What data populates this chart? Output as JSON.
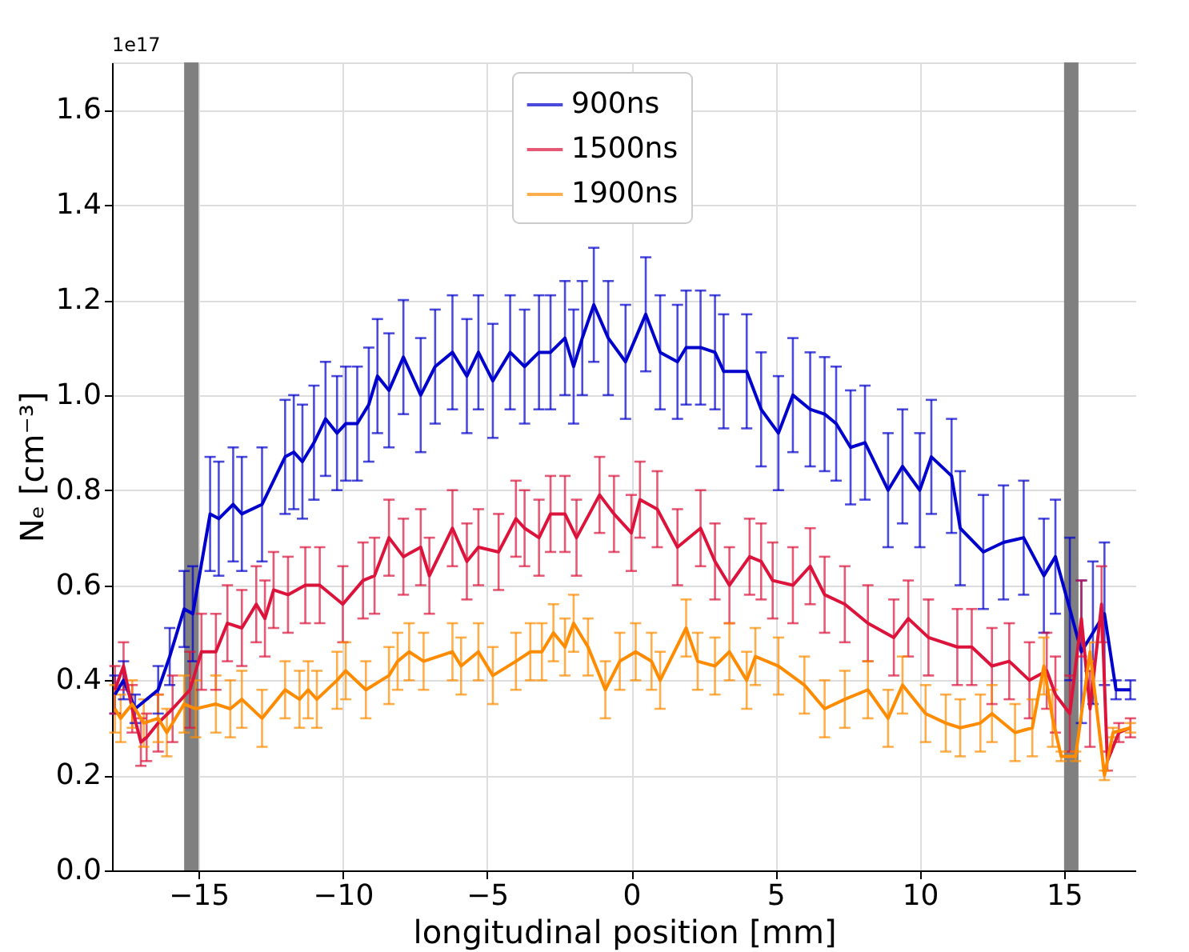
{
  "chart_data": {
    "type": "line",
    "xlabel": "longitudinal position [mm]",
    "ylabel": "Nₑ [cm⁻³]",
    "annotations": [
      "1e17"
    ],
    "xlim": [
      -18,
      17.5
    ],
    "ylim": [
      0,
      1.7
    ],
    "xticks": [
      {
        "value": -15,
        "label": "−15"
      },
      {
        "value": -10,
        "label": "−10"
      },
      {
        "value": -5,
        "label": "−5"
      },
      0,
      5,
      10,
      15
    ],
    "yticks": [
      {
        "value": 0,
        "label": "0.0"
      },
      {
        "value": 0.2,
        "label": "0.2"
      },
      {
        "value": 0.4,
        "label": "0.4"
      },
      {
        "value": 0.6,
        "label": "0.6"
      },
      {
        "value": 0.8,
        "label": "0.8"
      },
      {
        "value": 1,
        "label": "1.0"
      },
      {
        "value": 1.2,
        "label": "1.2"
      },
      {
        "value": 1.4,
        "label": "1.4"
      },
      {
        "value": 1.6,
        "label": "1.6"
      }
    ],
    "grid": true,
    "legend": "top",
    "marker": "none",
    "line_style": "solid",
    "bands": [
      {
        "axis": "x",
        "from": -15.5,
        "to": -15.0,
        "color": "#808080"
      },
      {
        "axis": "x",
        "from": 15.0,
        "to": 15.5,
        "color": "#808080"
      }
    ],
    "series": [
      {
        "name": "900ns",
        "color": "#0000cd",
        "x": [
          -17.9,
          -17.6,
          -17.2,
          -16.4,
          -16.0,
          -15.5,
          -15.2,
          -14.6,
          -14.3,
          -13.8,
          -13.5,
          -12.8,
          -12.0,
          -11.7,
          -11.4,
          -11.0,
          -10.6,
          -10.2,
          -9.9,
          -9.5,
          -9.1,
          -8.8,
          -8.4,
          -7.9,
          -7.3,
          -6.8,
          -6.2,
          -5.7,
          -5.3,
          -4.8,
          -4.2,
          -3.7,
          -3.2,
          -2.8,
          -2.3,
          -2.0,
          -1.7,
          -1.3,
          -0.8,
          -0.2,
          0.5,
          1.0,
          1.6,
          1.9,
          2.4,
          2.9,
          3.2,
          4.0,
          4.5,
          5.1,
          5.6,
          6.2,
          6.7,
          7.1,
          7.6,
          8.1,
          8.9,
          9.4,
          10.0,
          10.4,
          11.1,
          11.4,
          12.2,
          12.9,
          13.6,
          14.3,
          14.7,
          15.2,
          15.6,
          16.0,
          16.4,
          16.8,
          17.3
        ],
        "values": [
          0.37,
          0.4,
          0.34,
          0.38,
          0.45,
          0.55,
          0.54,
          0.75,
          0.74,
          0.77,
          0.75,
          0.77,
          0.87,
          0.88,
          0.86,
          0.9,
          0.95,
          0.92,
          0.94,
          0.94,
          0.98,
          1.04,
          1.01,
          1.08,
          1.0,
          1.06,
          1.09,
          1.04,
          1.09,
          1.03,
          1.09,
          1.06,
          1.09,
          1.09,
          1.12,
          1.06,
          1.12,
          1.19,
          1.12,
          1.07,
          1.17,
          1.09,
          1.07,
          1.1,
          1.1,
          1.09,
          1.05,
          1.05,
          0.97,
          0.92,
          1.0,
          0.97,
          0.96,
          0.94,
          0.89,
          0.9,
          0.8,
          0.85,
          0.8,
          0.87,
          0.83,
          0.72,
          0.67,
          0.69,
          0.7,
          0.62,
          0.66,
          0.55,
          0.46,
          0.5,
          0.54,
          0.38,
          0.38
        ],
        "errors": [
          0.04,
          0.04,
          0.03,
          0.05,
          0.06,
          0.08,
          0.1,
          0.12,
          0.12,
          0.12,
          0.12,
          0.12,
          0.12,
          0.12,
          0.12,
          0.12,
          0.12,
          0.12,
          0.12,
          0.12,
          0.12,
          0.12,
          0.12,
          0.12,
          0.12,
          0.12,
          0.12,
          0.12,
          0.12,
          0.12,
          0.12,
          0.12,
          0.12,
          0.12,
          0.12,
          0.12,
          0.12,
          0.12,
          0.12,
          0.12,
          0.12,
          0.12,
          0.12,
          0.12,
          0.12,
          0.12,
          0.12,
          0.12,
          0.12,
          0.12,
          0.12,
          0.12,
          0.12,
          0.12,
          0.12,
          0.12,
          0.12,
          0.12,
          0.12,
          0.12,
          0.12,
          0.12,
          0.12,
          0.12,
          0.12,
          0.12,
          0.12,
          0.15,
          0.15,
          0.15,
          0.15,
          0.02,
          0.02
        ]
      },
      {
        "name": "1500ns",
        "color": "#dc143c",
        "x": [
          -17.9,
          -17.6,
          -17.3,
          -17.0,
          -16.8,
          -16.4,
          -15.9,
          -15.3,
          -14.9,
          -14.4,
          -14.0,
          -13.5,
          -13.0,
          -12.7,
          -12.4,
          -11.9,
          -11.3,
          -10.8,
          -10.0,
          -9.3,
          -8.9,
          -8.4,
          -7.9,
          -7.3,
          -7.0,
          -6.2,
          -5.7,
          -5.3,
          -4.6,
          -4.0,
          -3.7,
          -3.2,
          -2.8,
          -2.3,
          -1.9,
          -1.1,
          -0.6,
          0.0,
          0.3,
          0.9,
          1.6,
          2.4,
          2.9,
          3.4,
          4.1,
          4.5,
          4.9,
          5.6,
          6.2,
          6.7,
          7.4,
          8.2,
          9.1,
          9.6,
          10.3,
          11.3,
          11.8,
          12.5,
          13.1,
          13.8,
          14.4,
          14.7,
          15.2,
          15.6,
          15.9,
          16.3,
          16.5,
          16.9,
          17.3
        ],
        "values": [
          0.38,
          0.43,
          0.34,
          0.27,
          0.28,
          0.31,
          0.34,
          0.38,
          0.46,
          0.46,
          0.52,
          0.51,
          0.56,
          0.53,
          0.59,
          0.58,
          0.6,
          0.6,
          0.56,
          0.61,
          0.62,
          0.7,
          0.66,
          0.68,
          0.62,
          0.72,
          0.65,
          0.68,
          0.67,
          0.74,
          0.72,
          0.7,
          0.75,
          0.75,
          0.7,
          0.79,
          0.75,
          0.71,
          0.78,
          0.76,
          0.68,
          0.72,
          0.65,
          0.6,
          0.66,
          0.65,
          0.61,
          0.6,
          0.64,
          0.58,
          0.56,
          0.52,
          0.49,
          0.53,
          0.49,
          0.47,
          0.47,
          0.43,
          0.44,
          0.4,
          0.42,
          0.37,
          0.33,
          0.53,
          0.34,
          0.56,
          0.23,
          0.29,
          0.3
        ],
        "errors": [
          0.05,
          0.05,
          0.05,
          0.05,
          0.05,
          0.06,
          0.07,
          0.08,
          0.08,
          0.08,
          0.08,
          0.08,
          0.08,
          0.08,
          0.08,
          0.08,
          0.08,
          0.08,
          0.08,
          0.08,
          0.08,
          0.08,
          0.08,
          0.08,
          0.08,
          0.08,
          0.08,
          0.08,
          0.08,
          0.08,
          0.08,
          0.08,
          0.08,
          0.08,
          0.08,
          0.08,
          0.08,
          0.08,
          0.08,
          0.08,
          0.08,
          0.08,
          0.08,
          0.08,
          0.08,
          0.08,
          0.08,
          0.08,
          0.08,
          0.08,
          0.08,
          0.08,
          0.08,
          0.08,
          0.08,
          0.08,
          0.08,
          0.08,
          0.08,
          0.08,
          0.08,
          0.08,
          0.08,
          0.08,
          0.08,
          0.08,
          0.02,
          0.02,
          0.02
        ]
      },
      {
        "name": "1900ns",
        "color": "#ff8c00",
        "x": [
          -17.9,
          -17.7,
          -17.3,
          -16.9,
          -16.4,
          -16.1,
          -15.5,
          -15.1,
          -14.4,
          -13.9,
          -13.5,
          -12.8,
          -12.0,
          -11.5,
          -11.2,
          -10.9,
          -10.2,
          -9.9,
          -9.2,
          -8.4,
          -8.1,
          -7.7,
          -7.2,
          -6.2,
          -5.9,
          -5.3,
          -4.8,
          -4.0,
          -3.5,
          -3.1,
          -2.7,
          -2.3,
          -2.0,
          -1.5,
          -0.9,
          -0.4,
          0.15,
          0.7,
          1.0,
          1.9,
          2.3,
          2.9,
          3.4,
          4.0,
          4.3,
          5.1,
          6.0,
          6.7,
          7.4,
          8.2,
          8.9,
          9.4,
          10.2,
          10.9,
          11.4,
          12.1,
          12.5,
          13.3,
          13.9,
          14.3,
          14.6,
          14.9,
          15.4,
          15.9,
          16.4,
          16.7,
          17.3
        ],
        "values": [
          0.34,
          0.32,
          0.35,
          0.31,
          0.32,
          0.29,
          0.35,
          0.34,
          0.35,
          0.34,
          0.36,
          0.32,
          0.38,
          0.36,
          0.38,
          0.36,
          0.4,
          0.42,
          0.38,
          0.41,
          0.44,
          0.46,
          0.44,
          0.46,
          0.43,
          0.46,
          0.41,
          0.44,
          0.46,
          0.46,
          0.5,
          0.47,
          0.52,
          0.47,
          0.38,
          0.44,
          0.46,
          0.44,
          0.4,
          0.51,
          0.44,
          0.43,
          0.46,
          0.4,
          0.45,
          0.43,
          0.39,
          0.34,
          0.36,
          0.38,
          0.32,
          0.39,
          0.33,
          0.31,
          0.3,
          0.31,
          0.33,
          0.29,
          0.3,
          0.43,
          0.32,
          0.24,
          0.24,
          0.46,
          0.2,
          0.29,
          0.3
        ],
        "errors": [
          0.05,
          0.05,
          0.05,
          0.05,
          0.05,
          0.05,
          0.06,
          0.06,
          0.06,
          0.06,
          0.06,
          0.06,
          0.06,
          0.06,
          0.06,
          0.06,
          0.06,
          0.06,
          0.06,
          0.06,
          0.06,
          0.06,
          0.06,
          0.06,
          0.06,
          0.06,
          0.06,
          0.06,
          0.06,
          0.06,
          0.06,
          0.06,
          0.06,
          0.06,
          0.06,
          0.06,
          0.06,
          0.06,
          0.06,
          0.06,
          0.06,
          0.06,
          0.06,
          0.06,
          0.06,
          0.06,
          0.06,
          0.06,
          0.06,
          0.06,
          0.06,
          0.06,
          0.06,
          0.06,
          0.06,
          0.06,
          0.06,
          0.06,
          0.06,
          0.06,
          0.06,
          0.01,
          0.01,
          0.02,
          0.01,
          0.01,
          0.01
        ]
      }
    ]
  }
}
